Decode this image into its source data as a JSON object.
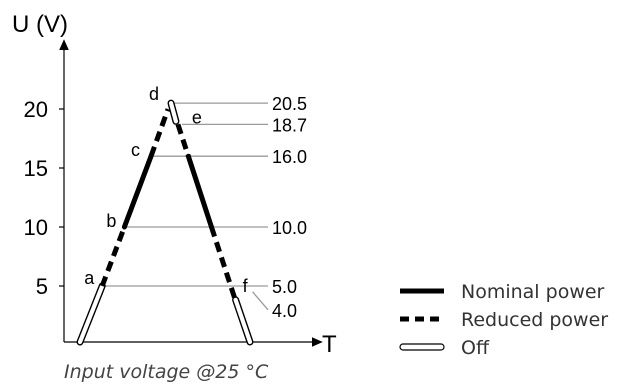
{
  "chart_data": {
    "type": "line",
    "title": "",
    "caption": "Input voltage @25 °C",
    "ylabel": "U (V)",
    "xlabel": "T",
    "ylim": [
      0,
      26
    ],
    "yticks": [
      5,
      10,
      15,
      20
    ],
    "grid": false,
    "legend_position": "bottom-right",
    "thresholds": [
      {
        "point": "a",
        "value": 5.0,
        "label": "5.0"
      },
      {
        "point": "b",
        "value": 10.0,
        "label": "10.0"
      },
      {
        "point": "c",
        "value": 16.0,
        "label": "16.0"
      },
      {
        "point": "d",
        "value": 20.5,
        "label": "20.5"
      },
      {
        "point": "e",
        "value": 18.7,
        "label": "18.7"
      },
      {
        "point": "f",
        "value": 4.0,
        "label": "4.0"
      }
    ],
    "series": [
      {
        "name": "Nominal power",
        "style": "solid",
        "segments": [
          [
            "b",
            "c"
          ],
          [
            "e",
            "f"
          ]
        ]
      },
      {
        "name": "Reduced power",
        "style": "dashed",
        "segments": [
          [
            "a",
            "b"
          ],
          [
            "c",
            "d"
          ],
          [
            "e",
            "f"
          ]
        ]
      },
      {
        "name": "Off",
        "style": "outline",
        "segments": [
          [
            "0",
            "a"
          ],
          [
            "d",
            "e"
          ],
          [
            "f",
            "0"
          ]
        ]
      }
    ],
    "legend": [
      {
        "label": "Nominal power",
        "style": "solid"
      },
      {
        "label": "Reduced power",
        "style": "dashed"
      },
      {
        "label": "Off",
        "style": "outline"
      }
    ]
  }
}
